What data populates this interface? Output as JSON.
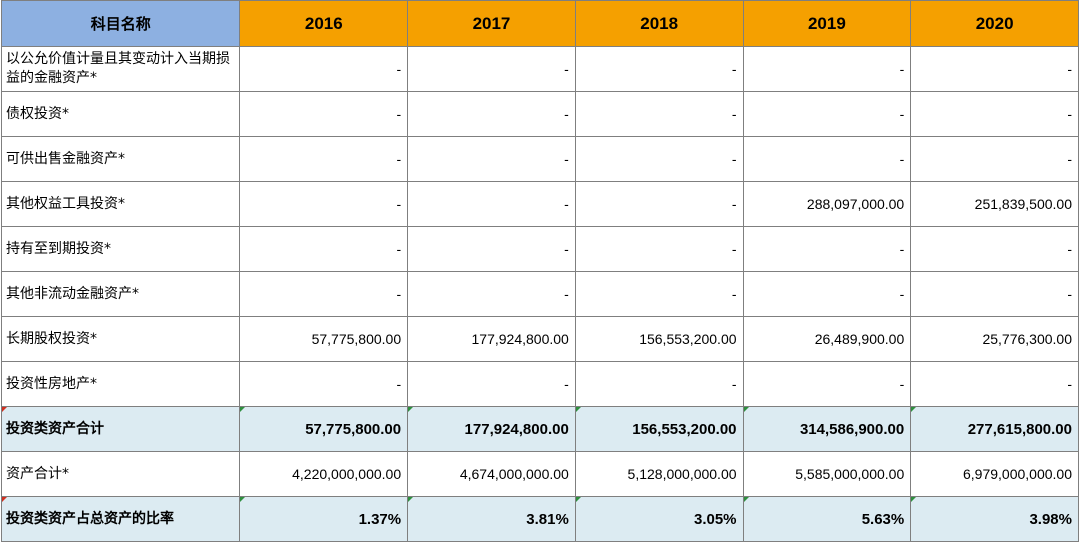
{
  "header": {
    "name_col": "科目名称",
    "years": [
      "2016",
      "2017",
      "2018",
      "2019",
      "2020"
    ]
  },
  "rows": [
    {
      "label": "以公允价值计量且其变动计入当期损益的金融资产*",
      "values": [
        "-",
        "-",
        "-",
        "-",
        "-"
      ]
    },
    {
      "label": "债权投资*",
      "values": [
        "-",
        "-",
        "-",
        "-",
        "-"
      ]
    },
    {
      "label": "可供出售金融资产*",
      "values": [
        "-",
        "-",
        "-",
        "-",
        "-"
      ]
    },
    {
      "label": "其他权益工具投资*",
      "values": [
        "-",
        "-",
        "-",
        "288,097,000.00",
        "251,839,500.00"
      ]
    },
    {
      "label": "持有至到期投资*",
      "values": [
        "-",
        "-",
        "-",
        "-",
        "-"
      ]
    },
    {
      "label": "其他非流动金融资产*",
      "values": [
        "-",
        "-",
        "-",
        "-",
        "-"
      ]
    },
    {
      "label": "长期股权投资*",
      "values": [
        "57,775,800.00",
        "177,924,800.00",
        "156,553,200.00",
        "26,489,900.00",
        "25,776,300.00"
      ]
    },
    {
      "label": "投资性房地产*",
      "values": [
        "-",
        "-",
        "-",
        "-",
        "-"
      ]
    },
    {
      "label": "投资类资产合计",
      "values": [
        "57,775,800.00",
        "177,924,800.00",
        "156,553,200.00",
        "314,586,900.00",
        "277,615,800.00"
      ]
    },
    {
      "label": "资产合计*",
      "values": [
        "4,220,000,000.00",
        "4,674,000,000.00",
        "5,128,000,000.00",
        "5,585,000,000.00",
        "6,979,000,000.00"
      ]
    },
    {
      "label": "投资类资产占总资产的比率",
      "values": [
        "1.37%",
        "3.81%",
        "3.05%",
        "5.63%",
        "3.98%"
      ]
    }
  ],
  "colors": {
    "name_header_bg": "#8db0e1",
    "year_header_bg": "#f5a000",
    "summary_row_bg": "#dcebf2"
  }
}
